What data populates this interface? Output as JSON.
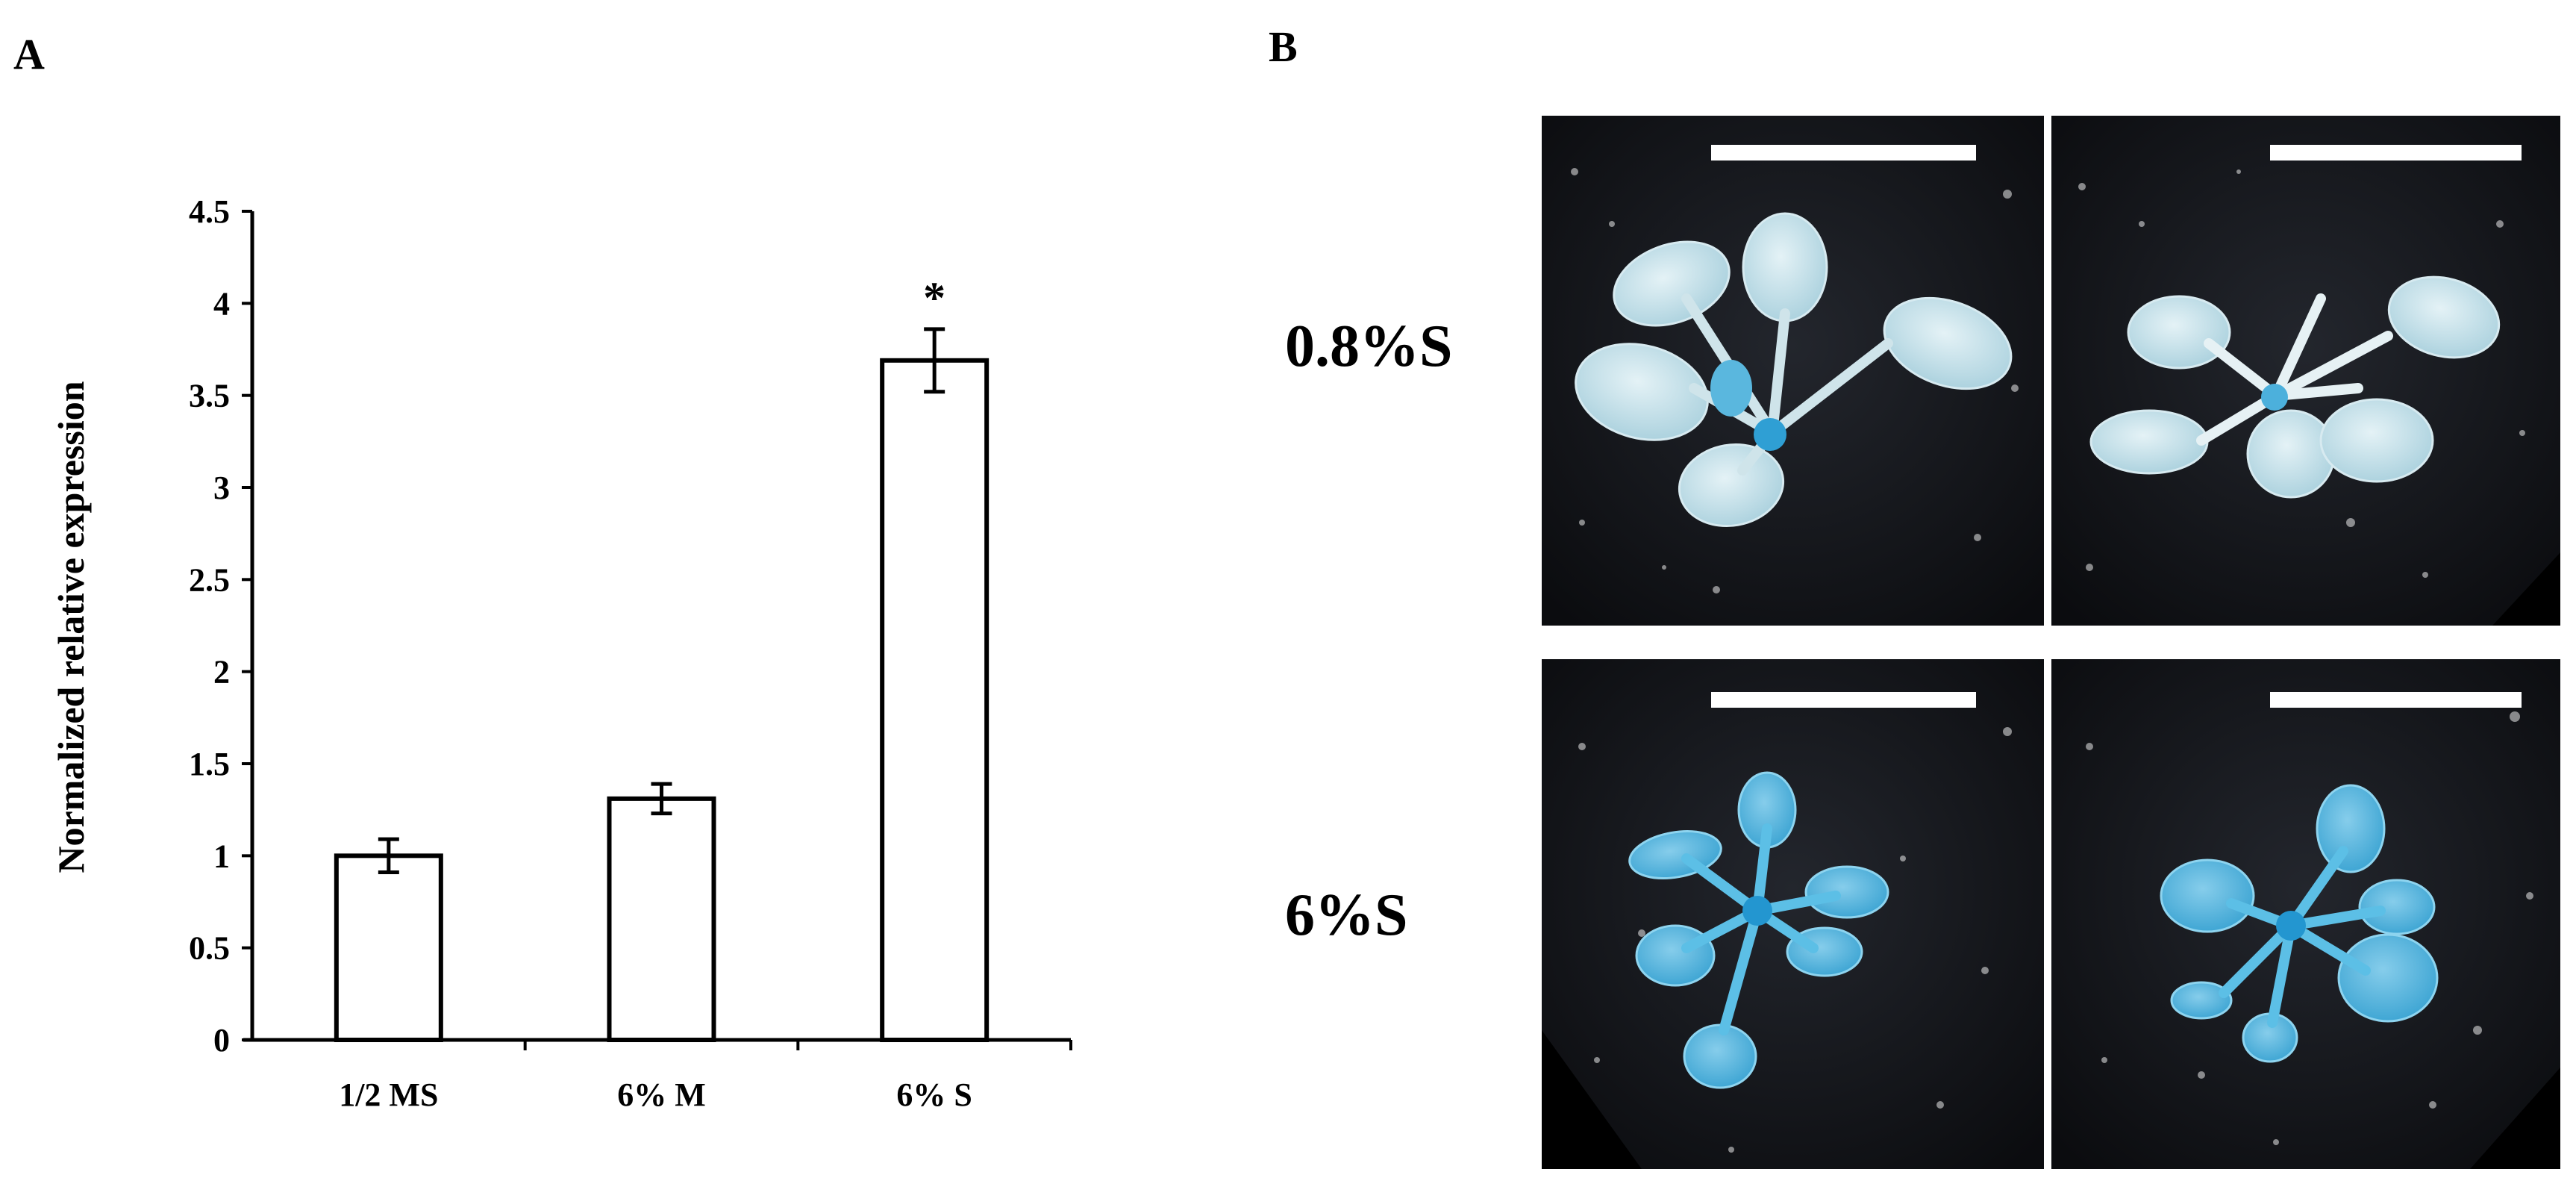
{
  "panel_a_label": "A",
  "panel_b_label": "B",
  "chart_data": {
    "type": "bar",
    "categories": [
      "1/2 MS",
      "6% M",
      "6% S"
    ],
    "values": [
      1.0,
      1.31,
      3.69
    ],
    "errors": [
      0.09,
      0.08,
      0.17
    ],
    "annotations": [
      "",
      "",
      "*"
    ],
    "ylabel": "Normalized relative expression",
    "xlabel": "",
    "ylim": [
      0,
      4.5
    ],
    "yticks": [
      {
        "value": 0,
        "label": "0"
      },
      {
        "value": 0.5,
        "label": "0.5"
      },
      {
        "value": 1,
        "label": "1"
      },
      {
        "value": 1.5,
        "label": "1.5"
      },
      {
        "value": 2,
        "label": "2"
      },
      {
        "value": 2.5,
        "label": "2.5"
      },
      {
        "value": 3,
        "label": "3"
      },
      {
        "value": 3.5,
        "label": "3.5"
      },
      {
        "value": 4,
        "label": "4"
      },
      {
        "value": 4.5,
        "label": "4.5"
      }
    ],
    "grid": false,
    "bar_fill": "#ffffff",
    "bar_stroke": "#000000"
  },
  "panel_b": {
    "row_labels": [
      "0.8%S",
      "6%S"
    ],
    "photo_background": "#0f1014",
    "seedling_color_row1": "#b9dbe6",
    "seedling_color_row2": "#4fb4dd",
    "scale_bar_color": "#ffffff"
  }
}
